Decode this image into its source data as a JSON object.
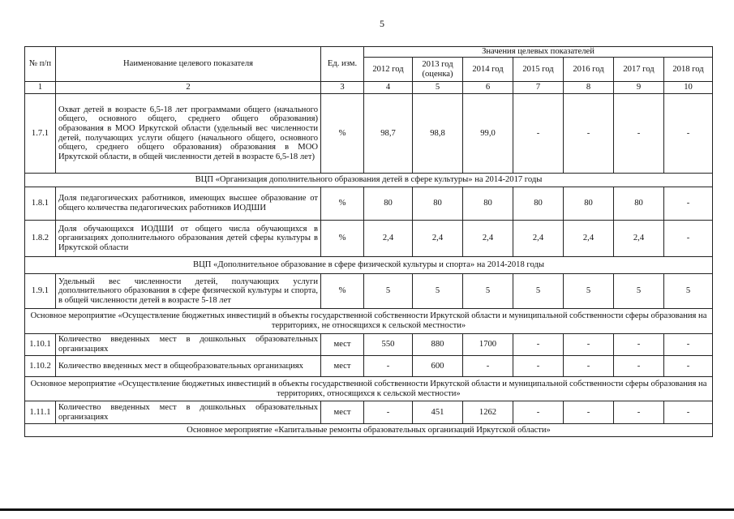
{
  "page_number": "5",
  "table": {
    "header": {
      "num": "№ п/п",
      "name": "Наименование целевого показателя",
      "unit": "Ед. изм.",
      "values_group": "Значения целевых показателей",
      "years": [
        "2012 год",
        "2013 год (оценка)",
        "2014 год",
        "2015 год",
        "2016 год",
        "2017 год",
        "2018 год"
      ],
      "col_numbers": [
        "1",
        "2",
        "3",
        "4",
        "5",
        "6",
        "7",
        "8",
        "9",
        "10"
      ]
    },
    "rows": [
      {
        "type": "data",
        "num": "1.7.1",
        "name": "Охват детей в возрасте 6,5-18 лет программами общего (начального общего, основного общего, среднего общего образования) образования в МОО Иркутской области (удельный вес численности детей, получающих услуги общего (начального общего, основного общего, среднего общего образования) образования в МОО Иркутской области, в общей численности детей в возрасте 6,5-18 лет)",
        "unit": "%",
        "values": [
          "98,7",
          "98,8",
          "99,0",
          "-",
          "-",
          "-",
          "-"
        ]
      },
      {
        "type": "section",
        "title": "ВЦП «Организация дополнительного образования детей в сфере культуры» на 2014-2017 годы"
      },
      {
        "type": "data",
        "num": "1.8.1",
        "name": "Доля педагогических работников, имеющих высшее образование от общего количества педагогических работников ИОДШИ",
        "unit": "%",
        "values": [
          "80",
          "80",
          "80",
          "80",
          "80",
          "80",
          "-"
        ]
      },
      {
        "type": "data",
        "num": "1.8.2",
        "name": "Доля обучающихся ИОДШИ от общего числа обучающихся в организациях дополнительного образования детей сферы культуры в Иркутской области",
        "unit": "%",
        "values": [
          "2,4",
          "2,4",
          "2,4",
          "2,4",
          "2,4",
          "2,4",
          "-"
        ]
      },
      {
        "type": "section",
        "title": "ВЦП «Дополнительное образование в сфере физической культуры и спорта» на 2014-2018 годы"
      },
      {
        "type": "data",
        "num": "1.9.1",
        "name": "Удельный вес численности детей, получающих услуги дополнительного образования в сфере физической культуры и спорта, в общей численности детей в возрасте 5-18 лет",
        "unit": "%",
        "values": [
          "5",
          "5",
          "5",
          "5",
          "5",
          "5",
          "5"
        ]
      },
      {
        "type": "section",
        "title": "Основное мероприятие «Осуществление бюджетных инвестиций в объекты государственной собственности Иркутской области и муниципальной собственности сферы образования на территориях, не относящихся к сельской местности»"
      },
      {
        "type": "data",
        "num": "1.10.1",
        "name": "Количество введенных мест в дошкольных образовательных организациях",
        "unit": "мест",
        "values": [
          "550",
          "880",
          "1700",
          "-",
          "-",
          "-",
          "-"
        ]
      },
      {
        "type": "data",
        "num": "1.10.2",
        "name": "Количество введенных мест в общеобразовательных организациях",
        "unit": "мест",
        "values": [
          "-",
          "600",
          "-",
          "-",
          "-",
          "-",
          "-"
        ]
      },
      {
        "type": "section",
        "title": "Основное мероприятие «Осуществление бюджетных инвестиций в объекты государственной собственности Иркутской области и муниципальной собственности сферы образования на территориях, относящихся к сельской местности»"
      },
      {
        "type": "data",
        "num": "1.11.1",
        "name": "Количество введенных мест в дошкольных образовательных организациях",
        "unit": "мест",
        "values": [
          "-",
          "451",
          "1262",
          "-",
          "-",
          "-",
          "-"
        ]
      },
      {
        "type": "section",
        "title": "Основное мероприятие «Капитальные ремонты образовательных организаций Иркутской области»"
      }
    ]
  }
}
